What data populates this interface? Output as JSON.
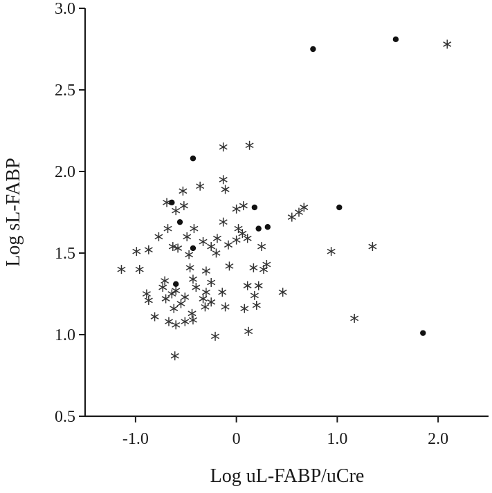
{
  "chart_data": {
    "type": "scatter",
    "title": "",
    "xlabel": "Log uL-FABP/uCre",
    "ylabel": "Log sL-FABP",
    "xlim": [
      -1.5,
      2.5
    ],
    "ylim": [
      0.5,
      3.0
    ],
    "x_ticks": [
      "-1.0",
      "0",
      "1.0",
      "2.0"
    ],
    "y_ticks": [
      "0.5",
      "1.0",
      "1.5",
      "2.0",
      "2.5",
      "3.0"
    ],
    "grid": false,
    "legend": "none",
    "colors": {
      "stars": "#333333",
      "dots": "#111111",
      "axes": "#1a1a1a"
    },
    "series": [
      {
        "marker": "asterisk",
        "points": [
          [
            2.09,
            2.78
          ],
          [
            -0.13,
            2.15
          ],
          [
            0.13,
            2.16
          ],
          [
            -0.13,
            1.95
          ],
          [
            -0.69,
            1.81
          ],
          [
            -0.53,
            1.88
          ],
          [
            -0.36,
            1.91
          ],
          [
            -0.11,
            1.89
          ],
          [
            -0.6,
            1.76
          ],
          [
            -0.52,
            1.79
          ],
          [
            0.07,
            1.79
          ],
          [
            0.55,
            1.72
          ],
          [
            0.62,
            1.75
          ],
          [
            0.67,
            1.78
          ],
          [
            0.0,
            1.77
          ],
          [
            -0.13,
            1.69
          ],
          [
            -0.77,
            1.6
          ],
          [
            -0.68,
            1.65
          ],
          [
            -0.63,
            1.54
          ],
          [
            -0.49,
            1.6
          ],
          [
            -0.42,
            1.65
          ],
          [
            -0.33,
            1.57
          ],
          [
            -0.19,
            1.59
          ],
          [
            -0.25,
            1.54
          ],
          [
            -0.08,
            1.55
          ],
          [
            0.06,
            1.62
          ],
          [
            0.11,
            1.59
          ],
          [
            0.25,
            1.54
          ],
          [
            -0.47,
            1.49
          ],
          [
            -0.99,
            1.51
          ],
          [
            -0.96,
            1.4
          ],
          [
            -1.14,
            1.4
          ],
          [
            -0.87,
            1.52
          ],
          [
            -0.58,
            1.53
          ],
          [
            0.94,
            1.51
          ],
          [
            1.35,
            1.54
          ],
          [
            1.17,
            1.1
          ],
          [
            -0.07,
            1.42
          ],
          [
            -0.3,
            1.39
          ],
          [
            -0.43,
            1.34
          ],
          [
            -0.46,
            1.41
          ],
          [
            -0.71,
            1.33
          ],
          [
            -0.73,
            1.29
          ],
          [
            -0.6,
            1.27
          ],
          [
            -0.51,
            1.23
          ],
          [
            -0.4,
            1.29
          ],
          [
            -0.25,
            1.32
          ],
          [
            -0.33,
            1.22
          ],
          [
            -0.14,
            1.26
          ],
          [
            0.11,
            1.3
          ],
          [
            0.18,
            1.24
          ],
          [
            0.22,
            1.3
          ],
          [
            -0.89,
            1.25
          ],
          [
            -0.87,
            1.21
          ],
          [
            -0.7,
            1.22
          ],
          [
            -0.64,
            1.25
          ],
          [
            -0.55,
            1.19
          ],
          [
            -0.62,
            1.16
          ],
          [
            -0.44,
            1.13
          ],
          [
            -0.31,
            1.17
          ],
          [
            -0.11,
            1.17
          ],
          [
            0.08,
            1.16
          ],
          [
            0.2,
            1.18
          ],
          [
            0.46,
            1.26
          ],
          [
            -0.81,
            1.11
          ],
          [
            -0.67,
            1.08
          ],
          [
            -0.6,
            1.06
          ],
          [
            -0.51,
            1.08
          ],
          [
            -0.43,
            1.09
          ],
          [
            -0.21,
            0.99
          ],
          [
            0.12,
            1.02
          ],
          [
            -0.61,
            0.87
          ],
          [
            0.0,
            1.58
          ],
          [
            -0.2,
            1.5
          ],
          [
            0.3,
            1.43
          ],
          [
            0.27,
            1.4
          ],
          [
            -0.25,
            1.2
          ],
          [
            -0.3,
            1.26
          ],
          [
            0.17,
            1.41
          ],
          [
            0.02,
            1.65
          ]
        ]
      },
      {
        "marker": "dot",
        "points": [
          [
            0.76,
            2.75
          ],
          [
            1.58,
            2.81
          ],
          [
            -0.43,
            2.08
          ],
          [
            -0.64,
            1.81
          ],
          [
            0.18,
            1.78
          ],
          [
            1.02,
            1.78
          ],
          [
            -0.56,
            1.69
          ],
          [
            0.22,
            1.65
          ],
          [
            0.31,
            1.66
          ],
          [
            -0.43,
            1.53
          ],
          [
            -0.6,
            1.31
          ],
          [
            1.85,
            1.01
          ]
        ]
      }
    ]
  }
}
